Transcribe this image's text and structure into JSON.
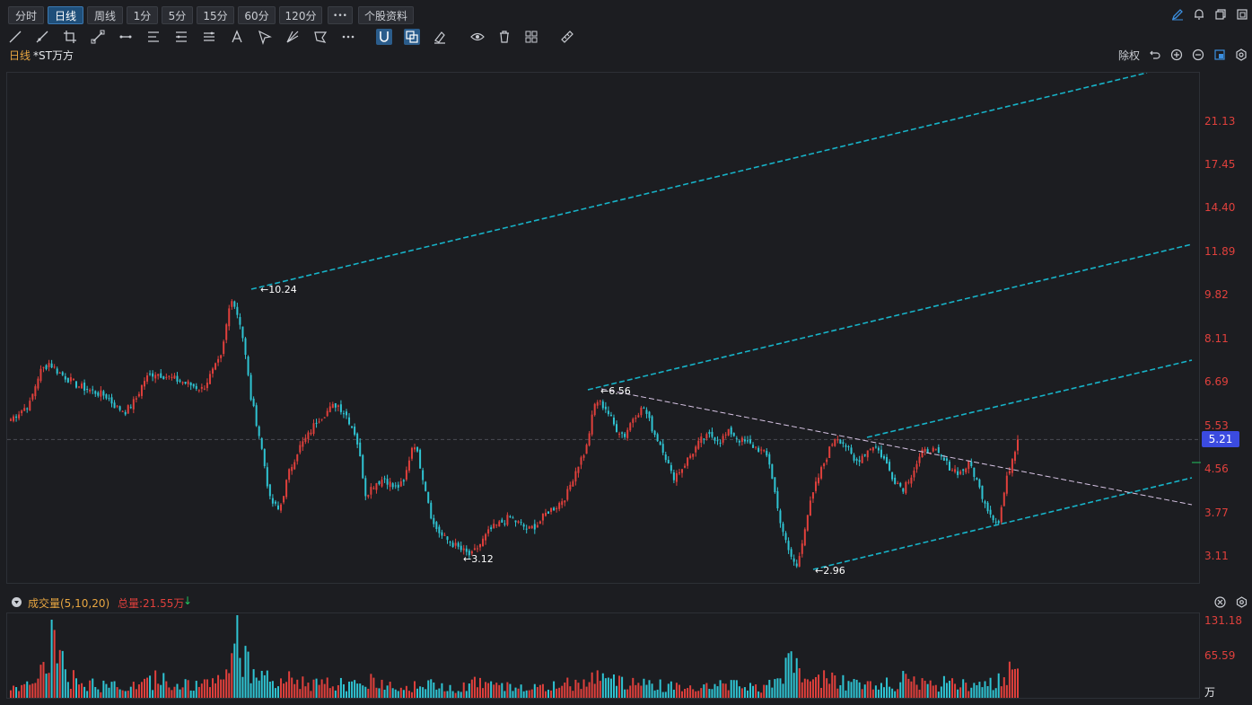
{
  "tabs": [
    "分时",
    "日线",
    "周线",
    "1分",
    "5分",
    "15分",
    "60分",
    "120分",
    "•••",
    "个股资料"
  ],
  "active_tab": "日线",
  "chart_header": {
    "period": "日线",
    "stock": "*ST万方",
    "adjust": "除权"
  },
  "price_axis": [
    "21.13",
    "17.45",
    "14.40",
    "11.89",
    "9.82",
    "8.11",
    "6.69",
    "5.53",
    "4.56",
    "3.77",
    "3.11"
  ],
  "current_price": "5.21",
  "annotations": {
    "high": "10.24",
    "mid_high": "6.56",
    "low1": "3.12",
    "low2": "2.96"
  },
  "volume_header": {
    "title": "成交量(5,10,20)",
    "total_label": "总量:21.55万",
    "arrow": "↓"
  },
  "volume_axis": {
    "max": "131.18",
    "mid": "65.59",
    "unit": "万"
  },
  "colors": {
    "up": "#e0403c",
    "down": "#2fc4d3",
    "channel": "#17b3c8",
    "trend": "#d7c4e4",
    "bg": "#1c1d21"
  },
  "chart_data": {
    "type": "candlestick",
    "y_scale": "log",
    "price_anchors": {
      "high": 10.24,
      "high2": 6.56,
      "low1": 3.12,
      "low2": 2.96,
      "last": 5.21
    },
    "close_path": [
      5.7,
      5.9,
      6.1,
      7.0,
      7.3,
      7.0,
      6.8,
      6.6,
      6.5,
      6.4,
      6.3,
      6.0,
      5.9,
      6.2,
      6.8,
      7.0,
      6.9,
      6.8,
      6.7,
      6.6,
      6.5,
      7.0,
      7.5,
      9.8,
      8.6,
      6.3,
      5.2,
      4.0,
      3.8,
      4.5,
      5.0,
      5.3,
      5.7,
      5.9,
      6.1,
      5.8,
      5.3,
      4.1,
      4.3,
      4.4,
      4.2,
      4.3,
      5.2,
      4.4,
      3.6,
      3.4,
      3.3,
      3.2,
      3.12,
      3.3,
      3.5,
      3.6,
      3.7,
      3.6,
      3.5,
      3.6,
      3.8,
      3.9,
      4.1,
      4.6,
      5.0,
      6.2,
      6.0,
      5.5,
      5.3,
      5.8,
      6.0,
      5.4,
      5.0,
      4.4,
      4.6,
      4.9,
      5.2,
      5.3,
      5.2,
      5.4,
      5.2,
      5.1,
      5.0,
      4.8,
      3.8,
      3.2,
      2.96,
      3.7,
      4.3,
      4.8,
      5.3,
      5.1,
      4.7,
      4.9,
      5.1,
      4.8,
      4.4,
      4.2,
      4.5,
      4.9,
      5.0,
      4.8,
      4.6,
      4.5,
      4.7,
      4.2,
      3.8,
      3.6,
      4.5,
      5.21
    ],
    "volume_path": [
      20,
      30,
      40,
      60,
      131,
      70,
      40,
      30,
      30,
      25,
      28,
      25,
      24,
      30,
      35,
      40,
      35,
      30,
      28,
      26,
      28,
      40,
      60,
      131,
      90,
      60,
      40,
      30,
      30,
      40,
      35,
      30,
      28,
      30,
      32,
      28,
      25,
      40,
      30,
      28,
      25,
      25,
      30,
      28,
      25,
      24,
      22,
      30,
      35,
      30,
      25,
      24,
      22,
      25,
      24,
      22,
      25,
      28,
      30,
      40,
      45,
      60,
      50,
      40,
      30,
      35,
      30,
      28,
      25,
      30,
      28,
      26,
      30,
      28,
      25,
      30,
      28,
      25,
      22,
      40,
      60,
      70,
      45,
      35,
      40,
      38,
      35,
      30,
      28,
      30,
      32,
      30,
      28,
      40,
      35,
      30,
      28,
      40,
      35,
      30,
      25,
      30,
      35,
      40,
      60,
      55
    ]
  }
}
